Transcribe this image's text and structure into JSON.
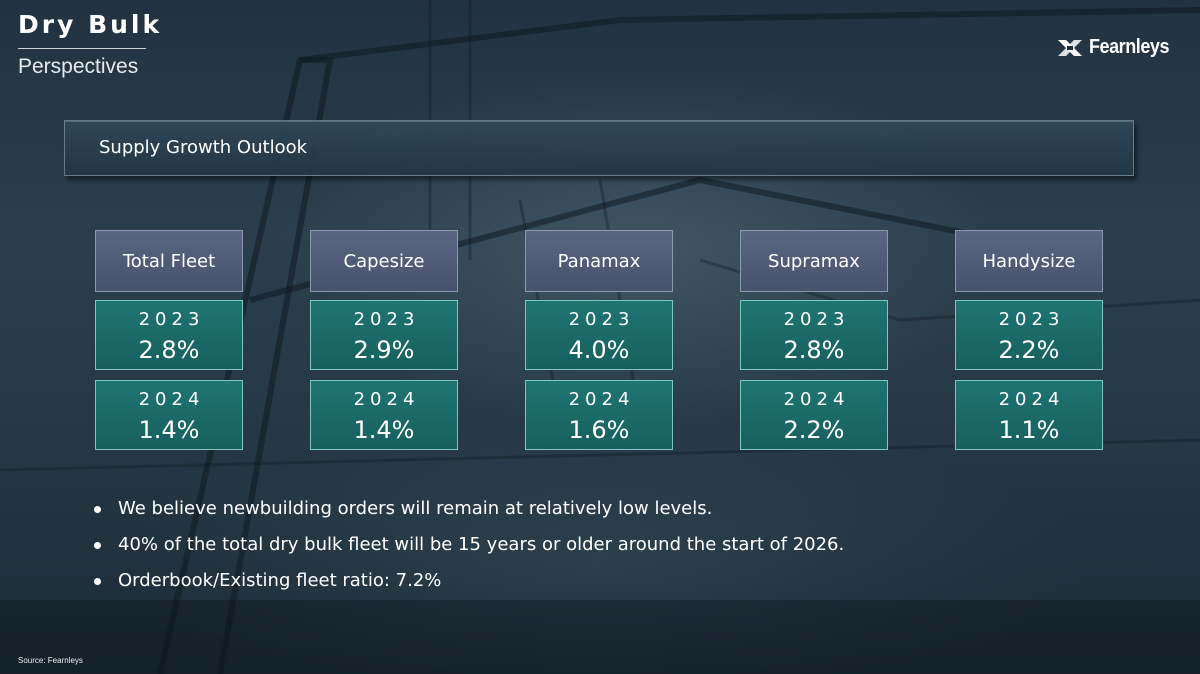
{
  "header": {
    "title": "Dry Bulk",
    "subtitle": "Perspectives",
    "brand": "Fearnleys"
  },
  "banner": {
    "label": "Supply Growth Outlook"
  },
  "segments": [
    {
      "name": "Total Fleet",
      "rows": [
        {
          "year": "2023",
          "value": "2.8%"
        },
        {
          "year": "2024",
          "value": "1.4%"
        }
      ]
    },
    {
      "name": "Capesize",
      "rows": [
        {
          "year": "2023",
          "value": "2.9%"
        },
        {
          "year": "2024",
          "value": "1.4%"
        }
      ]
    },
    {
      "name": "Panamax",
      "rows": [
        {
          "year": "2023",
          "value": "4.0%"
        },
        {
          "year": "2024",
          "value": "1.6%"
        }
      ]
    },
    {
      "name": "Supramax",
      "rows": [
        {
          "year": "2023",
          "value": "2.8%"
        },
        {
          "year": "2024",
          "value": "2.2%"
        }
      ]
    },
    {
      "name": "Handysize",
      "rows": [
        {
          "year": "2023",
          "value": "2.2%"
        },
        {
          "year": "2024",
          "value": "1.1%"
        }
      ]
    }
  ],
  "bullets": [
    "We believe newbuilding orders will remain at relatively low levels.",
    "40% of the total dry bulk fleet will be 15 years or older around the start of 2026.",
    "Orderbook/Existing fleet ratio: 7.2%"
  ],
  "footer": {
    "source": "Source: Fearnleys"
  },
  "colors": {
    "background": "#1e2e3a",
    "header_box": "#4f5b76",
    "value_box": "#1b6a68",
    "text": "#ffffff"
  },
  "icons": {
    "brand_mark": "fearnleys-logo-icon"
  }
}
